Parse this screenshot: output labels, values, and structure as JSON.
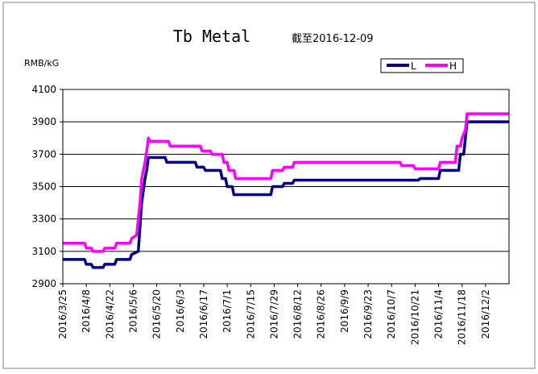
{
  "chart_data": {
    "type": "line",
    "title": "Tb Metal",
    "subtitle": "截至2016-12-09",
    "ylabel": "RMB/kG",
    "ylim": [
      2900,
      4100
    ],
    "yticks": [
      2900,
      3100,
      3300,
      3500,
      3700,
      3900,
      4100
    ],
    "xlim": [
      "2016-03-25",
      "2016-12-16"
    ],
    "xtick_labels": [
      "2016/3/25",
      "2016/4/8",
      "2016/4/22",
      "2016/5/6",
      "2016/5/20",
      "2016/6/3",
      "2016/6/17",
      "2016/7/1",
      "2016/7/15",
      "2016/7/29",
      "2016/8/12",
      "2016/8/26",
      "2016/9/9",
      "2016/9/23",
      "2016/10/7",
      "2016/10/21",
      "2016/11/4",
      "2016/11/18",
      "2016/12/2"
    ],
    "grid": "horizontal",
    "legend": "top-right",
    "series": [
      {
        "name": "L",
        "color": "#000080",
        "points": [
          [
            "2016-03-25",
            3050
          ],
          [
            "2016-04-07",
            3050
          ],
          [
            "2016-04-08",
            3020
          ],
          [
            "2016-04-11",
            3020
          ],
          [
            "2016-04-12",
            3000
          ],
          [
            "2016-04-18",
            3000
          ],
          [
            "2016-04-19",
            3020
          ],
          [
            "2016-04-25",
            3020
          ],
          [
            "2016-04-26",
            3050
          ],
          [
            "2016-05-04",
            3050
          ],
          [
            "2016-05-05",
            3080
          ],
          [
            "2016-05-09",
            3100
          ],
          [
            "2016-05-10",
            3250
          ],
          [
            "2016-05-11",
            3400
          ],
          [
            "2016-05-13",
            3550
          ],
          [
            "2016-05-14",
            3600
          ],
          [
            "2016-05-15",
            3680
          ],
          [
            "2016-05-25",
            3680
          ],
          [
            "2016-05-26",
            3650
          ],
          [
            "2016-06-12",
            3650
          ],
          [
            "2016-06-13",
            3620
          ],
          [
            "2016-06-17",
            3620
          ],
          [
            "2016-06-18",
            3600
          ],
          [
            "2016-06-27",
            3600
          ],
          [
            "2016-06-28",
            3550
          ],
          [
            "2016-06-30",
            3550
          ],
          [
            "2016-07-01",
            3500
          ],
          [
            "2016-07-04",
            3500
          ],
          [
            "2016-07-05",
            3450
          ],
          [
            "2016-07-27",
            3450
          ],
          [
            "2016-07-28",
            3500
          ],
          [
            "2016-08-03",
            3500
          ],
          [
            "2016-08-04",
            3520
          ],
          [
            "2016-08-09",
            3520
          ],
          [
            "2016-08-10",
            3540
          ],
          [
            "2016-10-23",
            3540
          ],
          [
            "2016-10-24",
            3550
          ],
          [
            "2016-11-04",
            3550
          ],
          [
            "2016-11-05",
            3600
          ],
          [
            "2016-11-16",
            3600
          ],
          [
            "2016-11-17",
            3700
          ],
          [
            "2016-11-19",
            3700
          ],
          [
            "2016-11-20",
            3800
          ],
          [
            "2016-11-21",
            3900
          ],
          [
            "2016-12-16",
            3900
          ]
        ]
      },
      {
        "name": "H",
        "color": "#ff00ff",
        "points": [
          [
            "2016-03-25",
            3150
          ],
          [
            "2016-04-07",
            3150
          ],
          [
            "2016-04-08",
            3120
          ],
          [
            "2016-04-11",
            3120
          ],
          [
            "2016-04-12",
            3100
          ],
          [
            "2016-04-18",
            3100
          ],
          [
            "2016-04-19",
            3120
          ],
          [
            "2016-04-25",
            3120
          ],
          [
            "2016-04-26",
            3150
          ],
          [
            "2016-05-04",
            3150
          ],
          [
            "2016-05-05",
            3180
          ],
          [
            "2016-05-08",
            3200
          ],
          [
            "2016-05-10",
            3400
          ],
          [
            "2016-05-11",
            3550
          ],
          [
            "2016-05-13",
            3650
          ],
          [
            "2016-05-14",
            3720
          ],
          [
            "2016-05-15",
            3800
          ],
          [
            "2016-05-16",
            3780
          ],
          [
            "2016-05-27",
            3780
          ],
          [
            "2016-05-28",
            3750
          ],
          [
            "2016-06-15",
            3750
          ],
          [
            "2016-06-16",
            3720
          ],
          [
            "2016-06-21",
            3720
          ],
          [
            "2016-06-22",
            3700
          ],
          [
            "2016-06-28",
            3700
          ],
          [
            "2016-06-29",
            3650
          ],
          [
            "2016-07-01",
            3650
          ],
          [
            "2016-07-02",
            3600
          ],
          [
            "2016-07-05",
            3600
          ],
          [
            "2016-07-06",
            3550
          ],
          [
            "2016-07-27",
            3550
          ],
          [
            "2016-07-28",
            3600
          ],
          [
            "2016-08-03",
            3600
          ],
          [
            "2016-08-04",
            3620
          ],
          [
            "2016-08-09",
            3620
          ],
          [
            "2016-08-10",
            3650
          ],
          [
            "2016-10-12",
            3650
          ],
          [
            "2016-10-13",
            3630
          ],
          [
            "2016-10-20",
            3630
          ],
          [
            "2016-10-21",
            3610
          ],
          [
            "2016-11-04",
            3610
          ],
          [
            "2016-11-05",
            3650
          ],
          [
            "2016-11-14",
            3650
          ],
          [
            "2016-11-15",
            3750
          ],
          [
            "2016-11-17",
            3750
          ],
          [
            "2016-11-18",
            3800
          ],
          [
            "2016-11-20",
            3850
          ],
          [
            "2016-11-21",
            3950
          ],
          [
            "2016-12-16",
            3950
          ]
        ]
      }
    ]
  }
}
